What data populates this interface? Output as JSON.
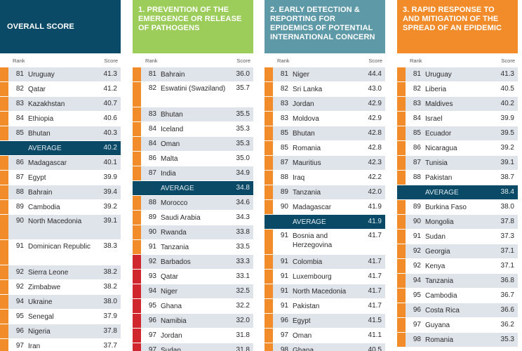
{
  "colors": {
    "overall": "#0b4a66",
    "prevention": "#9ccc5a",
    "detection": "#5d99a6",
    "response": "#f28c2b",
    "row_light": "#dfe3ea",
    "row_white": "#ffffff",
    "bar_orange": "#f28c2b",
    "bar_red": "#d0262e",
    "avg_bg": "#0b4a66"
  },
  "column_headers": {
    "rank": "Rank",
    "score": "Score"
  },
  "panels": [
    {
      "id": "overall",
      "title": "OVERALL SCORE",
      "rows": [
        {
          "rank": "81",
          "name": "Uruguay",
          "score": "41.3"
        },
        {
          "rank": "82",
          "name": "Qatar",
          "score": "41.2"
        },
        {
          "rank": "83",
          "name": "Kazakhstan",
          "score": "40.7"
        },
        {
          "rank": "84",
          "name": "Ethiopia",
          "score": "40.6"
        },
        {
          "rank": "85",
          "name": "Bhutan",
          "score": "40.3"
        },
        {
          "rank": "",
          "name": "AVERAGE",
          "score": "40.2",
          "average": true
        },
        {
          "rank": "86",
          "name": "Madagascar",
          "score": "40.1"
        },
        {
          "rank": "87",
          "name": "Egypt",
          "score": "39.9"
        },
        {
          "rank": "88",
          "name": "Bahrain",
          "score": "39.4"
        },
        {
          "rank": "89",
          "name": "Cambodia",
          "score": "39.2"
        },
        {
          "rank": "90",
          "name": "North Macedonia",
          "score": "39.1",
          "lines": 2
        },
        {
          "rank": "91",
          "name": "Dominican Republic",
          "score": "38.3",
          "lines": 2
        },
        {
          "rank": "92",
          "name": "Sierra Leone",
          "score": "38.2"
        },
        {
          "rank": "92",
          "name": "Zimbabwe",
          "score": "38.2"
        },
        {
          "rank": "94",
          "name": "Ukraine",
          "score": "38.0"
        },
        {
          "rank": "95",
          "name": "Senegal",
          "score": "37.9"
        },
        {
          "rank": "96",
          "name": "Nigeria",
          "score": "37.8"
        },
        {
          "rank": "97",
          "name": "Iran",
          "score": "37.7"
        }
      ]
    },
    {
      "id": "prevention",
      "title": "1. PREVENTION OF THE EMERGENCE OR RELEASE OF PATHOGENS",
      "rows": [
        {
          "rank": "81",
          "name": "Bahrain",
          "score": "36.0"
        },
        {
          "rank": "82",
          "name": "Eswatini (Swaziland)",
          "score": "35.7",
          "lines": 2
        },
        {
          "rank": "83",
          "name": "Bhutan",
          "score": "35.5"
        },
        {
          "rank": "84",
          "name": "Iceland",
          "score": "35.3"
        },
        {
          "rank": "84",
          "name": "Oman",
          "score": "35.3"
        },
        {
          "rank": "86",
          "name": "Malta",
          "score": "35.0"
        },
        {
          "rank": "87",
          "name": "India",
          "score": "34.9"
        },
        {
          "rank": "",
          "name": "AVERAGE",
          "score": "34.8",
          "average": true
        },
        {
          "rank": "88",
          "name": "Morocco",
          "score": "34.6"
        },
        {
          "rank": "89",
          "name": "Saudi Arabia",
          "score": "34.3"
        },
        {
          "rank": "90",
          "name": "Rwanda",
          "score": "33.8"
        },
        {
          "rank": "91",
          "name": "Tanzania",
          "score": "33.5"
        },
        {
          "rank": "92",
          "name": "Barbados",
          "score": "33.3",
          "red": true
        },
        {
          "rank": "93",
          "name": "Qatar",
          "score": "33.1",
          "red": true
        },
        {
          "rank": "94",
          "name": "Niger",
          "score": "32.5",
          "red": true
        },
        {
          "rank": "95",
          "name": "Ghana",
          "score": "32.2",
          "red": true
        },
        {
          "rank": "96",
          "name": "Namibia",
          "score": "32.0",
          "red": true
        },
        {
          "rank": "97",
          "name": "Jordan",
          "score": "31.8",
          "red": true
        },
        {
          "rank": "97",
          "name": "Sudan",
          "score": "31.8",
          "red": true
        }
      ]
    },
    {
      "id": "detection",
      "title": "2. EARLY DETECTION & REPORTING FOR EPIDEMICS OF POTENTIAL INTERNATIONAL CONCERN",
      "rows": [
        {
          "rank": "81",
          "name": "Niger",
          "score": "44.4"
        },
        {
          "rank": "82",
          "name": "Sri Lanka",
          "score": "43.0"
        },
        {
          "rank": "83",
          "name": "Jordan",
          "score": "42.9"
        },
        {
          "rank": "83",
          "name": "Moldova",
          "score": "42.9"
        },
        {
          "rank": "85",
          "name": "Bhutan",
          "score": "42.8"
        },
        {
          "rank": "85",
          "name": "Romania",
          "score": "42.8"
        },
        {
          "rank": "87",
          "name": "Mauritius",
          "score": "42.3"
        },
        {
          "rank": "88",
          "name": "Iraq",
          "score": "42.2"
        },
        {
          "rank": "89",
          "name": "Tanzania",
          "score": "42.0"
        },
        {
          "rank": "90",
          "name": "Madagascar",
          "score": "41.9"
        },
        {
          "rank": "",
          "name": "AVERAGE",
          "score": "41.9",
          "average": true
        },
        {
          "rank": "91",
          "name": "Bosnia and Herzegovina",
          "score": "41.7",
          "lines": 2
        },
        {
          "rank": "91",
          "name": "Colombia",
          "score": "41.7"
        },
        {
          "rank": "91",
          "name": "Luxembourg",
          "score": "41.7"
        },
        {
          "rank": "91",
          "name": "North Macedonia",
          "score": "41.7"
        },
        {
          "rank": "91",
          "name": "Pakistan",
          "score": "41.7"
        },
        {
          "rank": "96",
          "name": "Egypt",
          "score": "41.5"
        },
        {
          "rank": "97",
          "name": "Oman",
          "score": "41.1"
        },
        {
          "rank": "98",
          "name": "Ghana",
          "score": "40.5"
        }
      ]
    },
    {
      "id": "response",
      "title": "3. RAPID RESPONSE TO AND MITIGATION OF THE SPREAD OF AN EPIDEMIC",
      "rows": [
        {
          "rank": "81",
          "name": "Uruguay",
          "score": "41.3"
        },
        {
          "rank": "82",
          "name": "Liberia",
          "score": "40.5"
        },
        {
          "rank": "83",
          "name": "Maldives",
          "score": "40.2"
        },
        {
          "rank": "84",
          "name": "Israel",
          "score": "39.9"
        },
        {
          "rank": "85",
          "name": "Ecuador",
          "score": "39.5"
        },
        {
          "rank": "86",
          "name": "Nicaragua",
          "score": "39.2"
        },
        {
          "rank": "87",
          "name": "Tunisia",
          "score": "39.1"
        },
        {
          "rank": "88",
          "name": "Pakistan",
          "score": "38.7"
        },
        {
          "rank": "",
          "name": "AVERAGE",
          "score": "38.4",
          "average": true
        },
        {
          "rank": "89",
          "name": "Burkina Faso",
          "score": "38.0"
        },
        {
          "rank": "90",
          "name": "Mongolia",
          "score": "37.8"
        },
        {
          "rank": "91",
          "name": "Sudan",
          "score": "37.3"
        },
        {
          "rank": "92",
          "name": "Georgia",
          "score": "37.1"
        },
        {
          "rank": "92",
          "name": "Kenya",
          "score": "37.1"
        },
        {
          "rank": "94",
          "name": "Tanzania",
          "score": "36.8"
        },
        {
          "rank": "95",
          "name": "Cambodia",
          "score": "36.7"
        },
        {
          "rank": "96",
          "name": "Costa Rica",
          "score": "36.6"
        },
        {
          "rank": "97",
          "name": "Guyana",
          "score": "36.2"
        },
        {
          "rank": "98",
          "name": "Romania",
          "score": "35.3"
        }
      ]
    }
  ]
}
